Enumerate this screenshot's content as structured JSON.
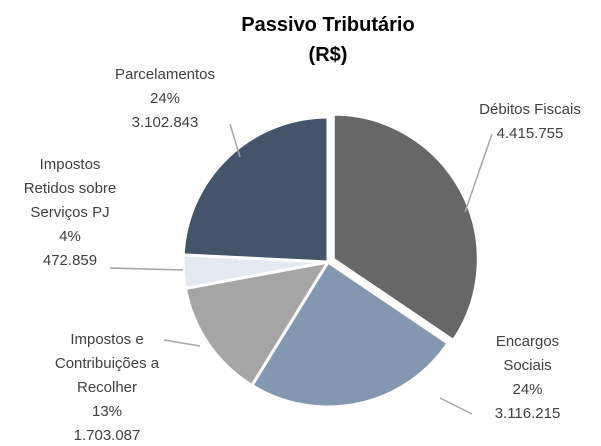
{
  "chart_data": {
    "type": "pie",
    "title": "Passivo Tributário (R$)",
    "categories": [
      "Débitos Fiscais",
      "Encargos Sociais",
      "Impostos e Contribuições a Recolher",
      "Impostos Retidos sobre Serviços PJ",
      "Parcelamentos"
    ],
    "values": [
      4415755,
      3116215,
      1703087,
      472859,
      3102843
    ],
    "value_labels": [
      "4.415.755",
      "3.116.215",
      "1.703.087",
      "472.859",
      "3.102.843"
    ],
    "percent_labels": [
      null,
      "24%",
      "13%",
      "4%",
      "24%"
    ],
    "colors": [
      "#676767",
      "#8497b0",
      "#a5a5a5",
      "#e4e8f0",
      "#44546a"
    ]
  }
}
